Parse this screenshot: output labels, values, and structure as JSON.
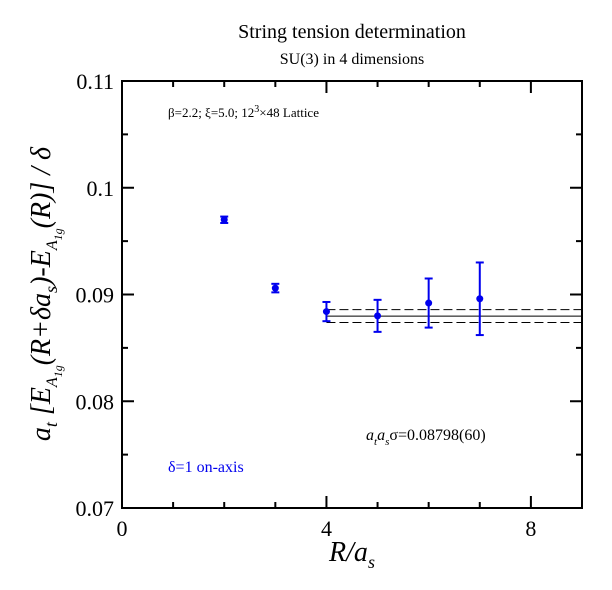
{
  "chart_data": {
    "type": "scatter",
    "title": "String tension determination",
    "subtitle": "SU(3) in 4 dimensions",
    "xlabel": "R/a_s",
    "ylabel": "a_t [E_{A_{1g}}(R+δa_s)-E_{A_{1g}}(R)] / δ",
    "xlim": [
      0,
      9
    ],
    "ylim": [
      0.07,
      0.11
    ],
    "x_ticks": [
      "0",
      "4",
      "8"
    ],
    "y_ticks": [
      "0.07",
      "0.08",
      "0.09",
      "0.1",
      "0.11"
    ],
    "grid": false,
    "annotation_lattice": "β=2.2;  ξ=5.0; 12³×48 Lattice",
    "annotation_result": "a_t a_s σ=0.08798(60)",
    "series": [
      {
        "name": "δ=1 on-axis",
        "color": "#0000ee",
        "x": [
          2,
          3,
          4,
          5,
          6,
          7
        ],
        "y": [
          0.097,
          0.0906,
          0.0884,
          0.088,
          0.0892,
          0.0896
        ],
        "err": [
          0.0003,
          0.0004,
          0.0009,
          0.0015,
          0.0023,
          0.0034
        ]
      }
    ],
    "fit": {
      "x_range": [
        4,
        9
      ],
      "central": 0.08798,
      "error": 0.0006,
      "color": "#000000"
    }
  }
}
